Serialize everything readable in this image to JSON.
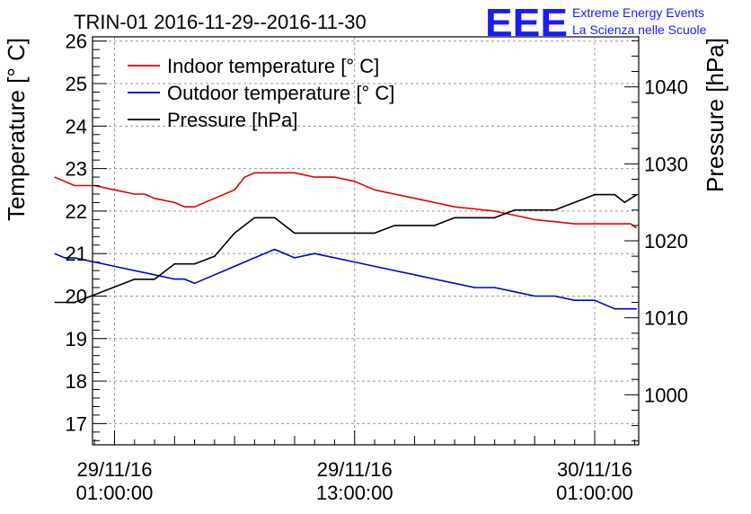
{
  "title": "TRIN-01 2016-11-29--2016-11-30",
  "logo": {
    "mark": "EEE",
    "line1": "Extreme Energy Events",
    "line2": "La Scienza nelle Scuole",
    "color": "#1a1aff"
  },
  "chart_data": {
    "type": "line",
    "title": "TRIN-01 2016-11-29--2016-11-30",
    "ylabel": "Temperature [° C]",
    "y2label": "Pressure [hPa]",
    "ylim": [
      16.5,
      26.1
    ],
    "y2lim": [
      993.5,
      1046.5
    ],
    "xlim": [
      -1.1,
      26.2
    ],
    "yticks": [
      "17",
      "18",
      "19",
      "20",
      "21",
      "22",
      "23",
      "24",
      "25",
      "26"
    ],
    "y2ticks": [
      "1000",
      "1010",
      "1020",
      "1030",
      "1040"
    ],
    "xticks": [
      {
        "x": 0,
        "line1": "29/11/16",
        "line2": "01:00:00"
      },
      {
        "x": 12,
        "line1": "29/11/16",
        "line2": "13:00:00"
      },
      {
        "x": 24,
        "line1": "30/11/16",
        "line2": "01:00:00"
      }
    ],
    "grid": true,
    "legend_position": "top-left",
    "series": [
      {
        "name": "Indoor temperature [° C]",
        "axis": "left",
        "color": "#e00000",
        "x": [
          -3,
          -2.5,
          -2,
          -1,
          0,
          1,
          1.5,
          2,
          3,
          3.5,
          4,
          5,
          6,
          6.5,
          7,
          8,
          9,
          10,
          11,
          12,
          13,
          14,
          15,
          16,
          17,
          18,
          19,
          20,
          21,
          22,
          23,
          23.5,
          24,
          25,
          25.8,
          26.1
        ],
        "values": [
          22.8,
          22.7,
          22.6,
          22.6,
          22.5,
          22.4,
          22.4,
          22.3,
          22.2,
          22.1,
          22.1,
          22.3,
          22.5,
          22.8,
          22.9,
          22.9,
          22.9,
          22.8,
          22.8,
          22.7,
          22.5,
          22.4,
          22.3,
          22.2,
          22.1,
          22.05,
          22.0,
          21.9,
          21.8,
          21.75,
          21.7,
          21.7,
          21.7,
          21.7,
          21.7,
          21.6
        ]
      },
      {
        "name": "Outdoor temperature [° C]",
        "axis": "left",
        "color": "#0000cc",
        "x": [
          -3,
          -2.5,
          -2,
          -1,
          0,
          1,
          2,
          3,
          3.5,
          4,
          5,
          6,
          7,
          7.5,
          8,
          9,
          10,
          11,
          12,
          13,
          14,
          15,
          16,
          17,
          18,
          19,
          20,
          21,
          22,
          23,
          23.5,
          24,
          25,
          26.1
        ],
        "values": [
          21.0,
          20.9,
          20.9,
          20.8,
          20.7,
          20.6,
          20.5,
          20.4,
          20.4,
          20.3,
          20.5,
          20.7,
          20.9,
          21.0,
          21.1,
          20.9,
          21.0,
          20.9,
          20.8,
          20.7,
          20.6,
          20.5,
          20.4,
          20.3,
          20.2,
          20.2,
          20.1,
          20.0,
          20.0,
          19.9,
          19.9,
          19.9,
          19.7,
          19.7
        ]
      },
      {
        "name": "Pressure [hPa]",
        "axis": "right",
        "color": "#000000",
        "x": [
          -3,
          -2,
          -1,
          0,
          1,
          2,
          3,
          4,
          5,
          6,
          7,
          8,
          9,
          10,
          11,
          12,
          13,
          14,
          15,
          16,
          17,
          18,
          19,
          20,
          21,
          22,
          23,
          24,
          25,
          25.5,
          26.1
        ],
        "values": [
          1012,
          1012,
          1013,
          1014,
          1015,
          1015,
          1017,
          1017,
          1018,
          1021,
          1023,
          1023,
          1021,
          1021,
          1021,
          1021,
          1021,
          1022,
          1022,
          1022,
          1023,
          1023,
          1023,
          1024,
          1024,
          1024,
          1025,
          1026,
          1026,
          1025,
          1026
        ]
      }
    ]
  }
}
